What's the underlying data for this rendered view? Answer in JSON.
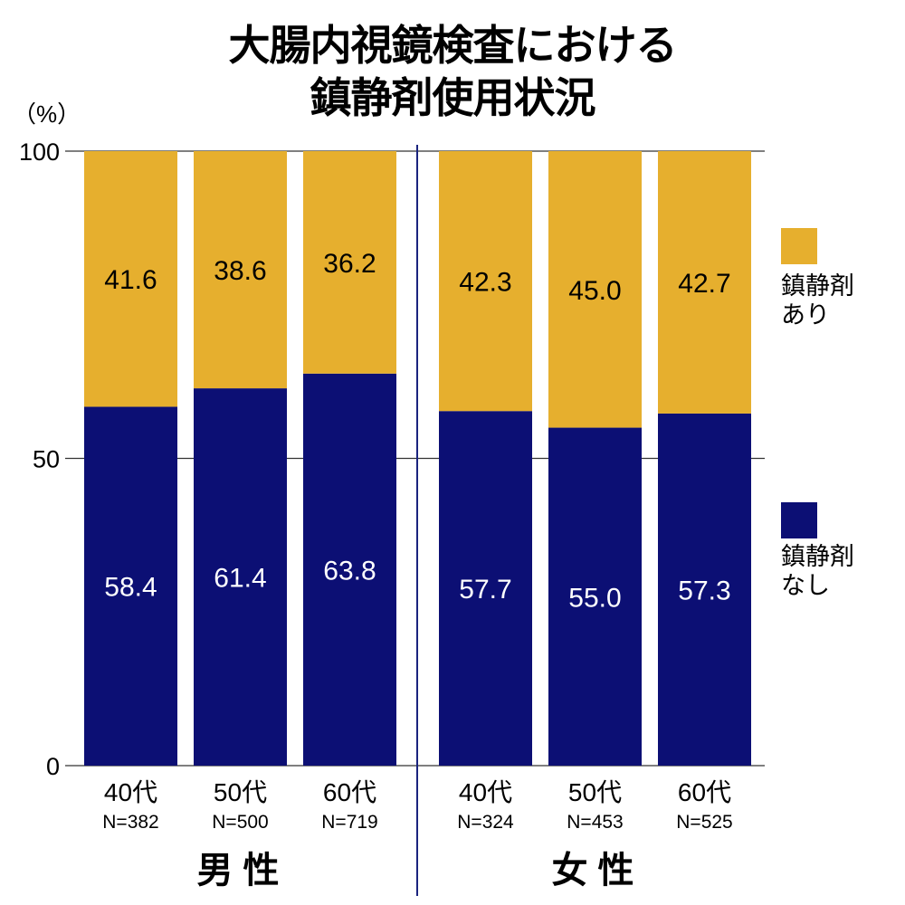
{
  "title": {
    "line1": "大腸内視鏡検査における",
    "line2": "鎮静剤使用状況"
  },
  "unit": "（%）",
  "colors": {
    "with_sedation": "#E6AF2E",
    "without_sedation": "#0C0F74",
    "divider": "#1A237E"
  },
  "legend": [
    {
      "line1": "鎮静剤",
      "line2": "あり",
      "color": "#E6AF2E"
    },
    {
      "line1": "鎮静剤",
      "line2": "なし",
      "color": "#0C0F74"
    }
  ],
  "chart_data": {
    "type": "bar",
    "stacked": true,
    "percent": true,
    "ylim": [
      0,
      100
    ],
    "yticks": [
      0,
      50,
      100
    ],
    "ylabel": "（%）",
    "groups": [
      "男 性",
      "女 性"
    ],
    "categories": [
      {
        "group": "男 性",
        "label": "40代",
        "n": "N=382"
      },
      {
        "group": "男 性",
        "label": "50代",
        "n": "N=500"
      },
      {
        "group": "男 性",
        "label": "60代",
        "n": "N=719"
      },
      {
        "group": "女 性",
        "label": "40代",
        "n": "N=324"
      },
      {
        "group": "女 性",
        "label": "50代",
        "n": "N=453"
      },
      {
        "group": "女 性",
        "label": "60代",
        "n": "N=525"
      }
    ],
    "series": [
      {
        "name": "鎮静剤なし",
        "color": "#0C0F74",
        "labels": [
          "58.4",
          "61.4",
          "63.8",
          "57.7",
          "55.0",
          "57.3"
        ],
        "values": [
          58.4,
          61.4,
          63.8,
          57.7,
          55.0,
          57.3
        ]
      },
      {
        "name": "鎮静剤あり",
        "color": "#E6AF2E",
        "labels": [
          "41.6",
          "38.6",
          "36.2",
          "42.3",
          "45.0",
          "42.7"
        ],
        "values": [
          41.6,
          38.6,
          36.2,
          42.3,
          45.0,
          42.7
        ]
      }
    ]
  }
}
